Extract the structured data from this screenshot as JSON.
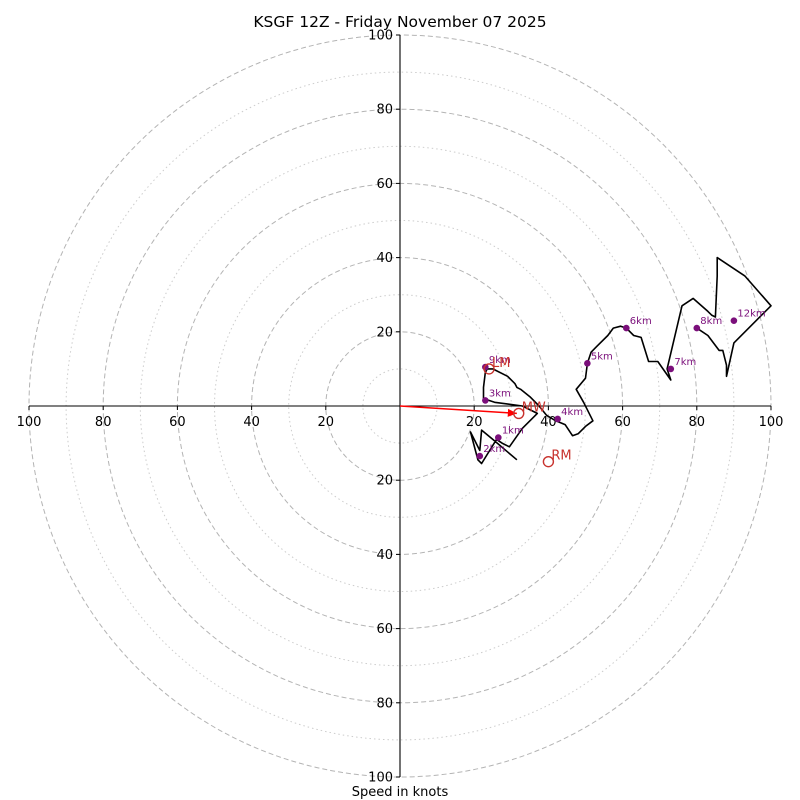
{
  "chart_data": {
    "type": "hodograph",
    "title": "KSGF 12Z - Friday November 07 2025",
    "xlabel": "Speed in knots",
    "ring_max": 100,
    "major_rings": [
      20,
      40,
      60,
      80,
      100
    ],
    "minor_rings": [
      10,
      30,
      50,
      70,
      90
    ],
    "x_tick_labels": [
      "100",
      "80",
      "60",
      "40",
      "20",
      "20",
      "40",
      "60",
      "80",
      "100"
    ],
    "y_tick_labels": [
      "100",
      "80",
      "60",
      "40",
      "20",
      "20",
      "40",
      "60",
      "80",
      "100"
    ],
    "x_tick_values": [
      -100,
      -80,
      -60,
      -40,
      -20,
      20,
      40,
      60,
      80,
      100
    ],
    "y_tick_values": [
      100,
      80,
      60,
      40,
      20,
      -20,
      -40,
      -60,
      -80,
      -100
    ],
    "trace_uv": [
      [
        31.5,
        -14.5
      ],
      [
        25,
        -9
      ],
      [
        22,
        -6.5
      ],
      [
        21.5,
        -12
      ],
      [
        19,
        -7
      ],
      [
        21,
        -14.5
      ],
      [
        22,
        -15.5
      ],
      [
        26,
        -9
      ],
      [
        27.5,
        -10
      ],
      [
        29.5,
        -11
      ],
      [
        33,
        -6
      ],
      [
        37,
        -2
      ],
      [
        33,
        0
      ],
      [
        25.5,
        1
      ],
      [
        22.5,
        2
      ],
      [
        22.5,
        5
      ],
      [
        23,
        9
      ],
      [
        23.5,
        10
      ],
      [
        25,
        10
      ],
      [
        29,
        8
      ],
      [
        31,
        6
      ],
      [
        31.5,
        5
      ],
      [
        32.5,
        4.5
      ],
      [
        35,
        2.5
      ],
      [
        37.5,
        0
      ],
      [
        39.5,
        -2.5
      ],
      [
        42,
        -4
      ],
      [
        44.5,
        -5
      ],
      [
        46.5,
        -8
      ],
      [
        48,
        -7.5
      ],
      [
        50,
        -5.5
      ],
      [
        52,
        -4
      ],
      [
        49.5,
        1
      ],
      [
        47.5,
        4.5
      ],
      [
        50,
        7.5
      ],
      [
        50.5,
        11.5
      ],
      [
        51.5,
        14.5
      ],
      [
        53,
        16
      ],
      [
        56,
        19
      ],
      [
        57.5,
        21
      ],
      [
        59.5,
        21.5
      ],
      [
        61,
        21
      ],
      [
        63,
        19
      ],
      [
        65,
        18.5
      ],
      [
        67,
        12
      ],
      [
        69.5,
        12
      ],
      [
        73,
        7
      ],
      [
        72,
        10
      ],
      [
        76,
        27
      ],
      [
        79,
        29
      ],
      [
        83,
        25.5
      ],
      [
        84,
        24.5
      ],
      [
        85,
        24
      ],
      [
        85.5,
        35
      ],
      [
        85.5,
        40
      ],
      [
        93,
        35
      ],
      [
        100,
        27
      ],
      [
        90,
        17
      ],
      [
        88,
        8
      ],
      [
        88,
        11
      ],
      [
        87,
        15
      ],
      [
        86,
        15
      ],
      [
        83,
        19
      ],
      [
        80,
        21
      ]
    ],
    "height_markers": [
      {
        "label": "1km",
        "u": 26.5,
        "v": -8.5
      },
      {
        "label": "2km",
        "u": 21.5,
        "v": -13.5
      },
      {
        "label": "3km",
        "u": 23,
        "v": 1.5
      },
      {
        "label": "4km",
        "u": 42.5,
        "v": -3.5
      },
      {
        "label": "5km",
        "u": 50.5,
        "v": 11.5
      },
      {
        "label": "6km",
        "u": 61,
        "v": 21
      },
      {
        "label": "7km",
        "u": 73,
        "v": 10
      },
      {
        "label": "8km",
        "u": 80,
        "v": 21
      },
      {
        "label": "9km",
        "u": 23,
        "v": 10.5
      },
      {
        "label": "12km",
        "u": 90,
        "v": 23
      }
    ],
    "storm_motion": [
      {
        "label": "LM",
        "u": 24,
        "v": 10
      },
      {
        "label": "MW",
        "u": 32,
        "v": -2
      },
      {
        "label": "RM",
        "u": 40,
        "v": -15
      }
    ],
    "shear_vector": {
      "from_u": 0,
      "from_v": 0,
      "to_u": 31.5,
      "to_v": -2
    },
    "colors": {
      "trace": "#000000",
      "height_markers": "#7b0f7b",
      "storm_motion": "#c8322d",
      "shear_vector": "#ff0000",
      "rings": "#b4b4b4"
    }
  }
}
